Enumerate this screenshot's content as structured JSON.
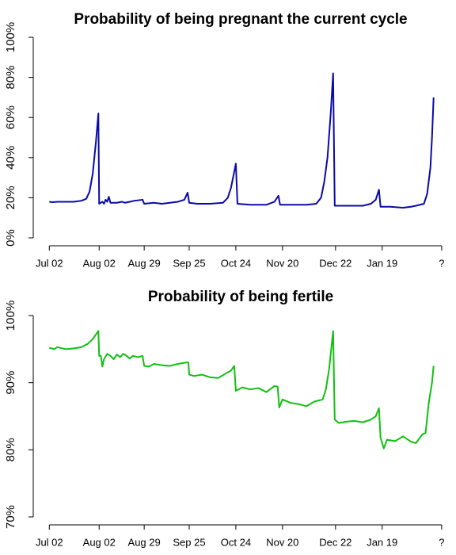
{
  "chart_data": [
    {
      "type": "line",
      "title": "Probability of being pregnant the current cycle",
      "xlim": [
        -10,
        248
      ],
      "xticks": [
        {
          "value": 0,
          "label": "Jul 02"
        },
        {
          "value": 31,
          "label": "Aug 02"
        },
        {
          "value": 59,
          "label": "Aug 29"
        },
        {
          "value": 87,
          "label": "Sep 25"
        },
        {
          "value": 116,
          "label": "Oct 24"
        },
        {
          "value": 145,
          "label": "Nov 20"
        },
        {
          "value": 178,
          "label": "Dec 22"
        },
        {
          "value": 207,
          "label": "Jan 19"
        },
        {
          "value": 244,
          "label": "?"
        }
      ],
      "ylim": [
        0,
        100
      ],
      "yticks": [
        {
          "value": 0,
          "label": "0%"
        },
        {
          "value": 20,
          "label": "20%"
        },
        {
          "value": 40,
          "label": "40%"
        },
        {
          "value": 60,
          "label": "60%"
        },
        {
          "value": 80,
          "label": "80%"
        },
        {
          "value": 100,
          "label": "100%"
        }
      ],
      "color": "#0a0aa8",
      "x": [
        0,
        2,
        5,
        10,
        15,
        20,
        23,
        25,
        27,
        29,
        30.5,
        31,
        33,
        34,
        35,
        36,
        37,
        38,
        42,
        45,
        47,
        50,
        53,
        58,
        59,
        65,
        70,
        75,
        80,
        84,
        86,
        87,
        92,
        100,
        108,
        111,
        113,
        115,
        116,
        117,
        125,
        135,
        140,
        142.5,
        143.5,
        150,
        160,
        166,
        169,
        171,
        173,
        175,
        176.5,
        177.5,
        185,
        195,
        200,
        203,
        205,
        206,
        212,
        220,
        225,
        228,
        233,
        235,
        237,
        238,
        239
      ],
      "values": [
        18,
        17.8,
        18,
        18,
        18,
        18.5,
        19.5,
        23,
        32,
        48,
        62,
        17,
        18,
        17,
        19,
        18,
        20.5,
        17.5,
        17.5,
        18,
        17.5,
        18,
        18.5,
        19,
        17,
        17.5,
        17,
        17.5,
        18,
        19,
        22.5,
        17.5,
        17,
        17,
        17.5,
        20,
        25,
        33,
        37,
        17,
        16.5,
        16.5,
        18,
        21,
        16.5,
        16.5,
        16.5,
        17,
        20,
        28,
        40,
        62,
        82,
        16,
        16,
        16,
        17,
        19,
        24,
        15.5,
        15.5,
        15,
        15.5,
        16,
        17,
        22,
        35,
        50,
        70
      ]
    },
    {
      "type": "line",
      "title": "Probability of being fertile",
      "xlim": [
        -10,
        248
      ],
      "xticks": [
        {
          "value": 0,
          "label": "Jul 02"
        },
        {
          "value": 31,
          "label": "Aug 02"
        },
        {
          "value": 59,
          "label": "Aug 29"
        },
        {
          "value": 87,
          "label": "Sep 25"
        },
        {
          "value": 116,
          "label": "Oct 24"
        },
        {
          "value": 145,
          "label": "Nov 20"
        },
        {
          "value": 178,
          "label": "Dec 22"
        },
        {
          "value": 207,
          "label": "Jan 19"
        },
        {
          "value": 244,
          "label": "?"
        }
      ],
      "ylim": [
        70,
        100
      ],
      "yticks": [
        {
          "value": 70,
          "label": "70%"
        },
        {
          "value": 80,
          "label": "80%"
        },
        {
          "value": 90,
          "label": "90%"
        },
        {
          "value": 100,
          "label": "100%"
        }
      ],
      "color": "#11c011",
      "x": [
        0,
        3,
        5,
        10,
        15,
        20,
        24,
        27,
        30.5,
        31,
        32,
        33,
        34,
        36,
        38,
        40,
        42,
        44,
        46,
        48,
        50,
        52,
        55,
        58,
        59,
        62,
        65,
        70,
        75,
        80,
        85,
        86.5,
        87,
        90,
        95,
        100,
        105,
        110,
        113,
        115,
        116,
        120,
        125,
        130,
        135,
        140,
        142,
        143,
        145,
        150,
        155,
        160,
        165,
        170,
        172,
        174,
        176.5,
        177.5,
        180,
        185,
        190,
        195,
        200,
        203,
        205,
        206,
        208,
        210,
        215,
        220,
        225,
        228,
        232,
        234,
        236,
        238,
        239
      ],
      "values": [
        95.2,
        95,
        95.3,
        95,
        95.1,
        95.3,
        95.8,
        96.5,
        97.7,
        94,
        94,
        92.4,
        93.5,
        94.3,
        94,
        93.5,
        94.2,
        93.8,
        94.3,
        94,
        93.6,
        94,
        93.8,
        94,
        92.5,
        92.4,
        92.8,
        92.6,
        92.5,
        92.8,
        93,
        93,
        91.2,
        91,
        91.2,
        90.8,
        90.7,
        91.4,
        91.8,
        92.5,
        88.8,
        89.3,
        89,
        89.2,
        88.6,
        89.5,
        89.4,
        86.3,
        87.5,
        87,
        86.8,
        86.5,
        87.2,
        87.5,
        89,
        92,
        97.7,
        84.5,
        84,
        84.2,
        84.3,
        84.1,
        84.5,
        85,
        86.2,
        81.8,
        80.2,
        81.5,
        81.3,
        82,
        81.2,
        81,
        82.3,
        82.5,
        87,
        90,
        92.5
      ]
    }
  ]
}
